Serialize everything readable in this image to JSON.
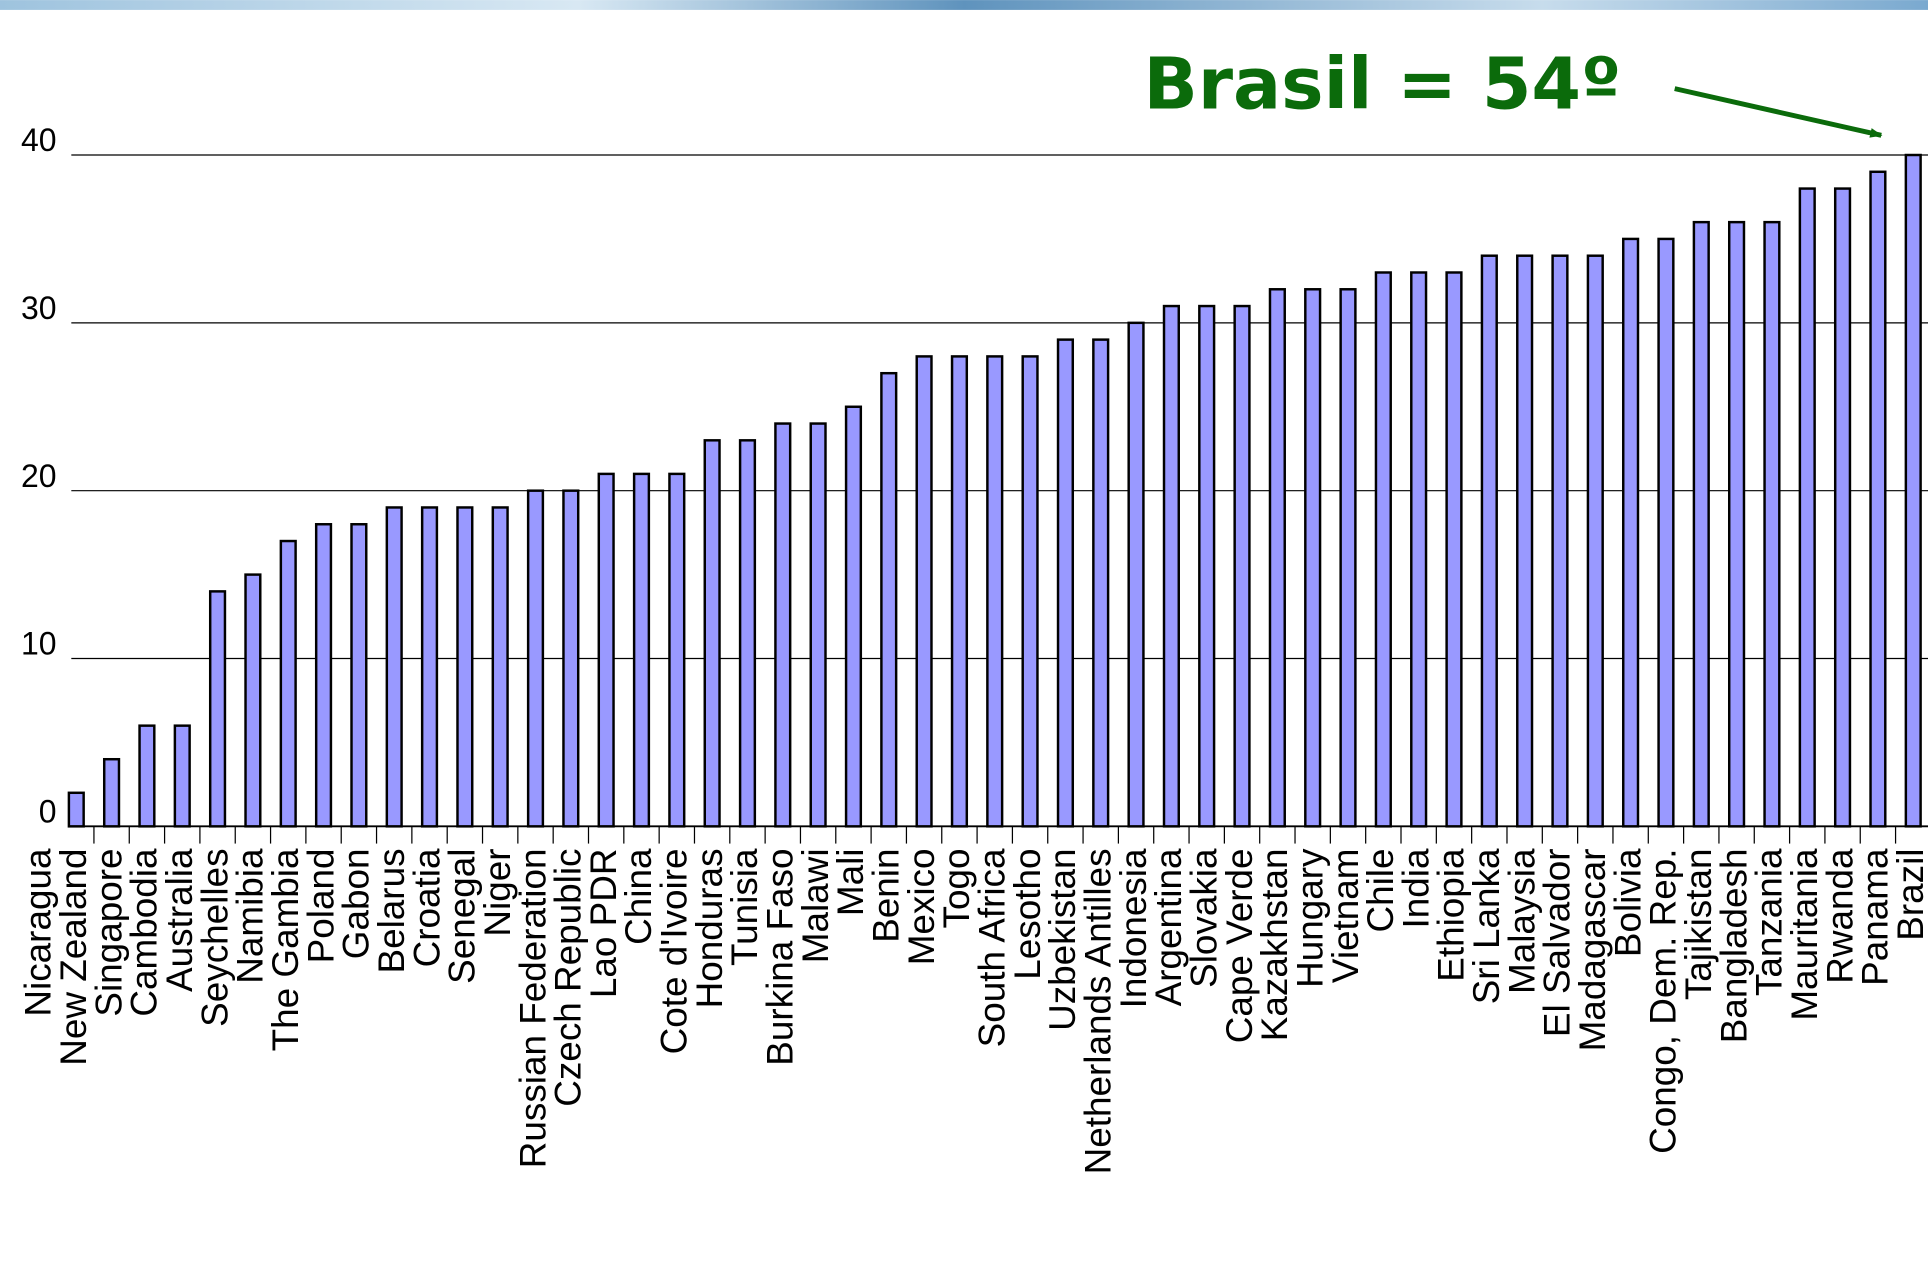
{
  "chart_data": {
    "type": "bar",
    "annotation": "Brasil = 54º",
    "categories": [
      "Nicaragua",
      "New Zealand",
      "Singapore",
      "Cambodia",
      "Australia",
      "Seychelles",
      "Namibia",
      "The Gambia",
      "Poland",
      "Gabon",
      "Belarus",
      "Croatia",
      "Senegal",
      "Niger",
      "Russian Federation",
      "Czech Republic",
      "Lao PDR",
      "China",
      "Cote d'Ivoire",
      "Honduras",
      "Tunisia",
      "Burkina Faso",
      "Malawi",
      "Mali",
      "Benin",
      "Mexico",
      "Togo",
      "South Africa",
      "Lesotho",
      "Uzbekistan",
      "Netherlands Antilles",
      "Indonesia",
      "Argentina",
      "Slovakia",
      "Cape Verde",
      "Kazakhstan",
      "Hungary",
      "Vietnam",
      "Chile",
      "India",
      "Ethiopia",
      "Sri Lanka",
      "Malaysia",
      "El Salvador",
      "Madagascar",
      "Bolivia",
      "Congo, Dem. Rep.",
      "Tajikistan",
      "Bangladesh",
      "Tanzania",
      "Mauritania",
      "Rwanda",
      "Panama",
      "Brazil"
    ],
    "values": [
      null,
      2,
      4,
      6,
      6,
      14,
      15,
      17,
      18,
      18,
      19,
      19,
      19,
      19,
      20,
      20,
      21,
      21,
      21,
      23,
      23,
      24,
      24,
      25,
      27,
      28,
      28,
      28,
      28,
      29,
      29,
      30,
      31,
      31,
      31,
      32,
      32,
      32,
      33,
      33,
      33,
      34,
      34,
      34,
      34,
      35,
      35,
      36,
      36,
      36,
      38,
      38,
      39,
      40
    ],
    "color": "#9999ff",
    "ylim": [
      0,
      40
    ],
    "yticks": [
      0,
      10,
      20,
      30,
      40
    ],
    "grid": true
  }
}
